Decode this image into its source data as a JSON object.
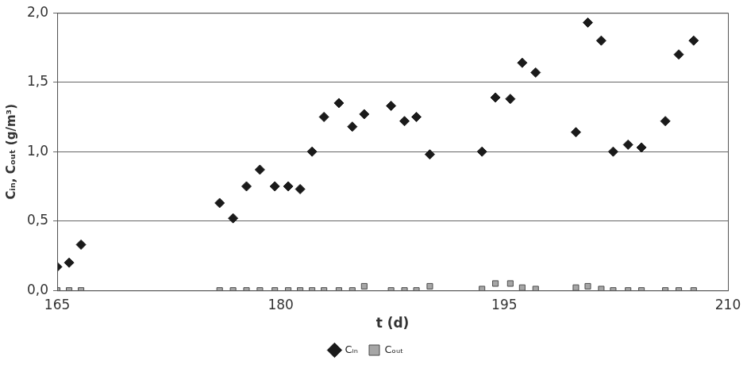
{
  "chart_data": {
    "type": "scatter",
    "x_label": "t (d)",
    "y_label": "Cᵢₙ, Cₒᵤₜ (g/m³)",
    "x": [
      165.0,
      165.8,
      166.6,
      175.9,
      176.8,
      177.7,
      178.6,
      179.6,
      180.5,
      181.3,
      182.1,
      182.9,
      183.9,
      184.8,
      185.6,
      187.4,
      188.3,
      189.1,
      190.0,
      193.5,
      194.4,
      195.4,
      196.2,
      197.1,
      199.8,
      200.6,
      201.5,
      202.3,
      203.3,
      204.2,
      205.8,
      206.7,
      207.7
    ],
    "series": [
      {
        "name": "Cᵢₙ",
        "color": "#1a1a1a",
        "marker": "diamond",
        "values": [
          0.17,
          0.2,
          0.33,
          0.63,
          0.52,
          0.75,
          0.87,
          0.75,
          0.75,
          0.73,
          1.0,
          1.25,
          1.35,
          1.18,
          1.27,
          1.33,
          1.22,
          1.25,
          0.98,
          1.0,
          1.39,
          1.38,
          1.64,
          1.57,
          1.14,
          1.93,
          1.8,
          1.0,
          1.05,
          1.03,
          1.22,
          1.7,
          1.8
        ]
      },
      {
        "name": "Cₒᵤₜ",
        "color": "#a6a6a6",
        "marker": "square",
        "values": [
          0,
          0,
          0,
          0,
          0,
          0,
          0,
          0,
          0,
          0,
          0,
          0,
          0,
          0,
          0.03,
          0,
          0,
          0,
          0.03,
          0.01,
          0.05,
          0.05,
          0.02,
          0.01,
          0.02,
          0.03,
          0.01,
          0,
          0,
          0,
          0,
          0,
          0
        ]
      }
    ],
    "xlim": [
      165,
      210
    ],
    "xticks": [
      165,
      180,
      195,
      210
    ],
    "ylim": [
      0,
      2
    ],
    "yticks": [
      {
        "value": 0,
        "label": "0,0"
      },
      {
        "value": 0.5,
        "label": "0,5"
      },
      {
        "value": 1,
        "label": "1,0"
      },
      {
        "value": 1.5,
        "label": "1,5"
      },
      {
        "value": 2,
        "label": "2,0"
      }
    ],
    "grid": true,
    "legend": "bottom"
  }
}
